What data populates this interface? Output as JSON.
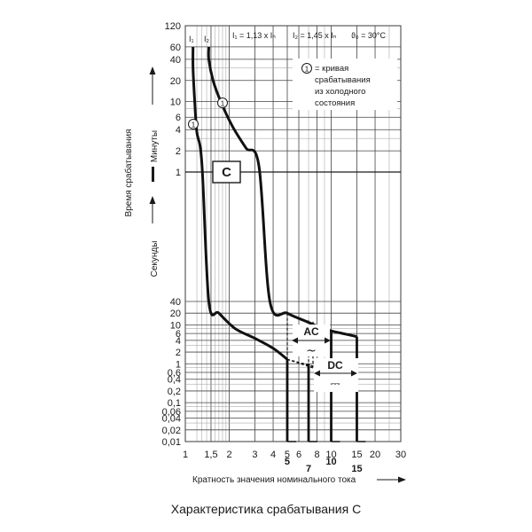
{
  "caption": "Характеристика срабатывания С",
  "chart_data": {
    "type": "line",
    "title": "",
    "header": {
      "i1": "I₁ = 1,13 x Iₙ",
      "i2": "I₂ = 1,45 x Iₙ",
      "temp": "ϑ₀ = 30°C"
    },
    "xlabel": "Кратность значения номинального тока",
    "ylabel": {
      "main": "Время срабатывания",
      "minutes": "Минуты",
      "seconds": "Секунды"
    },
    "x_scale": "log",
    "xlim": [
      1,
      30
    ],
    "x_ticks": [
      1,
      1.5,
      2,
      3,
      4,
      5,
      6,
      8,
      10,
      15,
      20,
      30
    ],
    "x_tick_labels": [
      "1",
      "1,5",
      "2",
      "3",
      "4",
      "5",
      "6",
      "8",
      "10",
      "15",
      "20",
      "30"
    ],
    "x_markers": [
      5,
      7,
      10,
      15
    ],
    "y_scale": "log",
    "y_sections": [
      {
        "unit": "min",
        "range": [
          1,
          120
        ],
        "ticks": [
          "1",
          "2",
          "4",
          "6",
          "10",
          "20",
          "40",
          "60",
          "120"
        ]
      },
      {
        "unit": "s",
        "range": [
          0.01,
          40
        ],
        "ticks": [
          "0,01",
          "0,02",
          "0,04",
          "0,06",
          "0,1",
          "0,2",
          "0,4",
          "0,6",
          "1",
          "2",
          "4",
          "6",
          "10",
          "20",
          "40"
        ]
      }
    ],
    "grid": true,
    "zone_label": "C",
    "curve_labels": [
      "I₁",
      "I₂"
    ],
    "annotation_marker": "1",
    "annotation": [
      "= кривая",
      "срабатывания",
      "из холодного",
      "состояния"
    ],
    "regions": [
      {
        "label": "AC",
        "symbol": "~",
        "from": 5,
        "to": 10
      },
      {
        "label": "DC",
        "symbol": "⎓",
        "from": 7,
        "to": 15
      }
    ],
    "series": [
      {
        "style": "bold",
        "points": [
          [
            1.13,
            60,
            "min"
          ],
          [
            1.13,
            30,
            "min"
          ],
          [
            1.16,
            10,
            "min"
          ],
          [
            1.2,
            3.7,
            "min"
          ],
          [
            1.3,
            1.3,
            "min"
          ],
          [
            1.45,
            40,
            "s"
          ],
          [
            1.7,
            20,
            "s"
          ],
          [
            2.2,
            8,
            "s"
          ],
          [
            3,
            4.5,
            "s"
          ],
          [
            4,
            2.5,
            "s"
          ],
          [
            5,
            1.3,
            "s"
          ]
        ]
      },
      {
        "style": "bold",
        "points": [
          [
            1.45,
            60,
            "min"
          ],
          [
            1.45,
            40,
            "min"
          ],
          [
            1.55,
            20,
            "min"
          ],
          [
            1.75,
            10,
            "min"
          ],
          [
            2.1,
            4.5,
            "min"
          ],
          [
            2.6,
            2.2,
            "min"
          ],
          [
            3.2,
            1.2,
            "min"
          ],
          [
            3.8,
            40,
            "s"
          ],
          [
            5,
            20,
            "s"
          ],
          [
            6.5,
            13,
            "s"
          ],
          [
            8.5,
            8.5,
            "s"
          ],
          [
            10,
            7,
            "s"
          ],
          [
            12,
            6,
            "s"
          ],
          [
            15,
            5,
            "s"
          ]
        ]
      },
      {
        "style": "dashed",
        "points": [
          [
            5,
            20,
            "s"
          ],
          [
            5,
            1.3,
            "s"
          ]
        ]
      },
      {
        "style": "dashed",
        "points": [
          [
            7,
            13,
            "s"
          ],
          [
            7,
            1,
            "s"
          ]
        ]
      },
      {
        "style": "dashed",
        "points": [
          [
            7.5,
            12,
            "s"
          ],
          [
            7.5,
            1,
            "s"
          ]
        ]
      },
      {
        "style": "dashed",
        "points": [
          [
            5,
            1.3,
            "s"
          ],
          [
            15,
            0.4,
            "s"
          ]
        ]
      },
      {
        "style": "dashed",
        "points": [
          [
            5,
            1.3,
            "s"
          ],
          [
            15,
            0.45,
            "s"
          ]
        ]
      },
      {
        "style": "dashed",
        "points": [
          [
            5,
            1.3,
            "s"
          ],
          [
            10,
            0.55,
            "s"
          ]
        ]
      }
    ],
    "vertical_drops": [
      {
        "x": 5,
        "from": 1.3,
        "to": 0.01
      },
      {
        "x": 7,
        "from": 1,
        "to": 0.01
      },
      {
        "x": 10,
        "from": 7,
        "to": 0.01
      },
      {
        "x": 15,
        "from": 5,
        "to": 0.01
      }
    ]
  }
}
